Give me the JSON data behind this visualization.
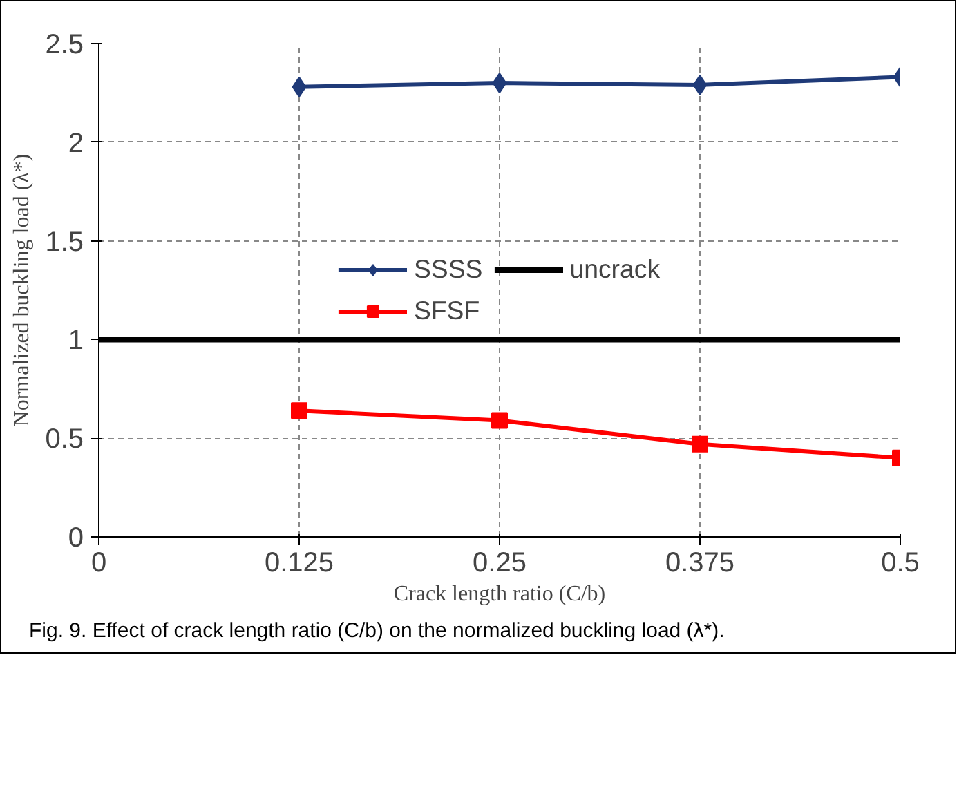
{
  "chart_data": {
    "type": "line",
    "xlabel": "Crack length ratio (C/b)",
    "ylabel": "Normalized buckling load (λ*)",
    "x": [
      0.125,
      0.25,
      0.375,
      0.5
    ],
    "series": [
      {
        "name": "SSSS",
        "color": "#1f3a78",
        "values": [
          2.28,
          2.3,
          2.29,
          2.33
        ],
        "marker": "diamond"
      },
      {
        "name": "SFSF",
        "color": "#ff0000",
        "values": [
          0.64,
          0.59,
          0.47,
          0.4
        ],
        "marker": "square"
      },
      {
        "name": "uncrack",
        "color": "#000000",
        "x": [
          0,
          0.5
        ],
        "values": [
          1,
          1
        ],
        "marker": "none"
      }
    ],
    "xlim": [
      0,
      0.5
    ],
    "ylim": [
      0,
      2.5
    ],
    "xticks": [
      0,
      0.125,
      0.25,
      0.375,
      0.5
    ],
    "yticks": [
      0,
      0.5,
      1,
      1.5,
      2,
      2.5
    ],
    "grid": true,
    "legend": "center",
    "line_style": "solid",
    "annotations": [
      "Fig. 9. Effect of crack length ratio (C/b) on the normalized buckling load (λ*)."
    ]
  }
}
